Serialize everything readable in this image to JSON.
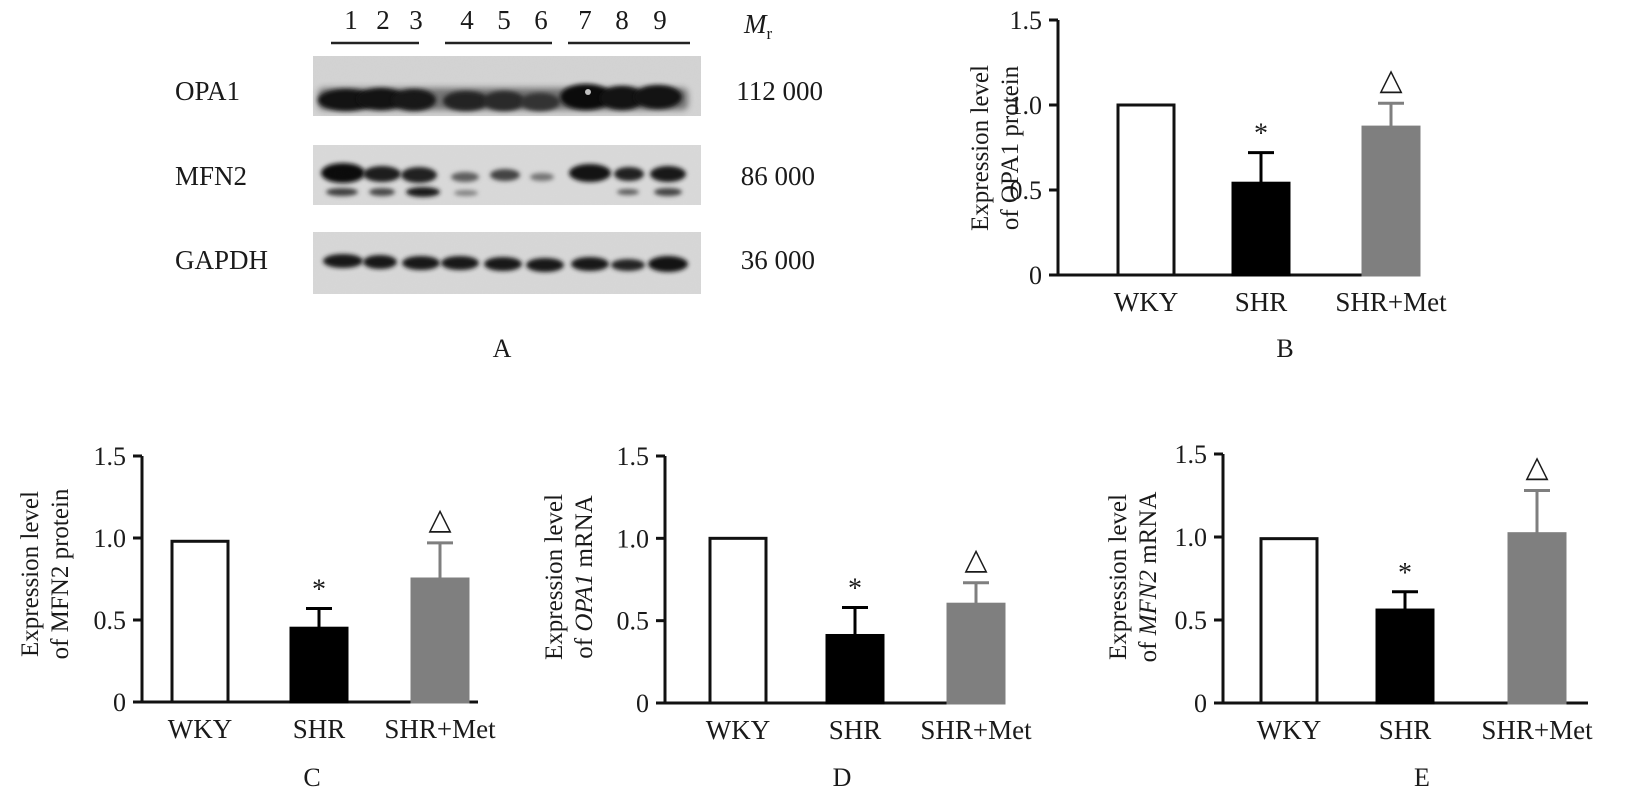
{
  "blot": {
    "lanes": [
      "1",
      "2",
      "3",
      "4",
      "5",
      "6",
      "7",
      "8",
      "9"
    ],
    "mr_symbol": "M",
    "mr_subscript": "r",
    "rows": [
      {
        "name": "OPA1",
        "mr": "112 000"
      },
      {
        "name": "MFN2",
        "mr": "86 000"
      },
      {
        "name": "GAPDH",
        "mr": "36 000"
      }
    ]
  },
  "panel_labels": [
    "A",
    "B",
    "C",
    "D",
    "E"
  ],
  "colors": {
    "WKY": "#ffffff",
    "SHR": "#000000",
    "SHR+Met": "#7f7f7f"
  },
  "chart_data": [
    {
      "panel": "B",
      "type": "bar",
      "categories": [
        "WKY",
        "SHR",
        "SHR+Met"
      ],
      "values": [
        1.0,
        0.54,
        0.87
      ],
      "errors": [
        0,
        0.18,
        0.14
      ],
      "annotations": [
        "",
        "*",
        "△"
      ],
      "ylabel_line1": "Expression level",
      "ylabel_line2": "of OPA1 protein",
      "ylim": [
        0,
        1.5
      ],
      "yticks": [
        "0",
        "0.5",
        "1.0",
        "1.5"
      ]
    },
    {
      "panel": "C",
      "type": "bar",
      "categories": [
        "WKY",
        "SHR",
        "SHR+Met"
      ],
      "values": [
        0.98,
        0.45,
        0.75
      ],
      "errors": [
        0,
        0.12,
        0.22
      ],
      "annotations": [
        "",
        "*",
        "△"
      ],
      "ylabel_line1": "Expression level",
      "ylabel_line2": "of MFN2 protein",
      "ylim": [
        0,
        1.5
      ],
      "yticks": [
        "0",
        "0.5",
        "1.0",
        "1.5"
      ]
    },
    {
      "panel": "D",
      "type": "bar",
      "categories": [
        "WKY",
        "SHR",
        "SHR+Met"
      ],
      "values": [
        1.0,
        0.41,
        0.6
      ],
      "errors": [
        0,
        0.17,
        0.13
      ],
      "annotations": [
        "",
        "*",
        "△"
      ],
      "ylabel_line1": "Expression level",
      "ylabel_pre": "of ",
      "ylabel_gene": "OPA1",
      "ylabel_post": " mRNA",
      "ylim": [
        0,
        1.5
      ],
      "yticks": [
        "0",
        "0.5",
        "1.0",
        "1.5"
      ]
    },
    {
      "panel": "E",
      "type": "bar",
      "categories": [
        "WKY",
        "SHR",
        "SHR+Met"
      ],
      "values": [
        0.99,
        0.56,
        1.02
      ],
      "errors": [
        0,
        0.11,
        0.26
      ],
      "annotations": [
        "",
        "*",
        "△"
      ],
      "ylabel_line1": "Expression level",
      "ylabel_pre": "of ",
      "ylabel_gene": "MFN2",
      "ylabel_post": " mRNA",
      "ylim": [
        0,
        1.5
      ],
      "yticks": [
        "0",
        "0.5",
        "1.0",
        "1.5"
      ]
    }
  ]
}
